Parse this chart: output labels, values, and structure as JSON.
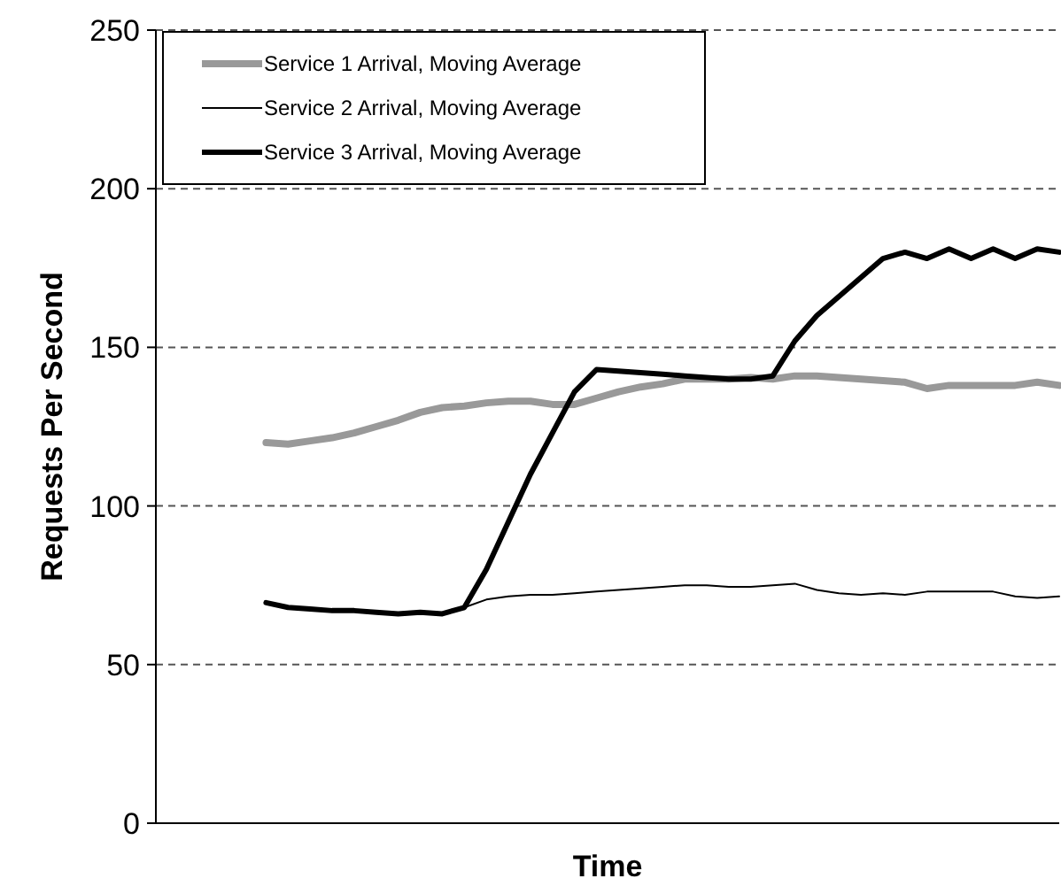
{
  "chart_data": {
    "type": "line",
    "xlabel": "Time",
    "ylabel": "Requests Per Second",
    "categories": [
      null,
      null,
      null,
      null,
      null,
      null,
      null,
      null,
      null,
      null,
      null,
      null,
      null,
      null,
      null,
      null,
      null,
      null,
      null,
      null,
      null,
      null,
      null,
      null,
      null,
      null,
      null,
      null,
      null,
      null,
      null,
      null,
      null,
      null,
      null,
      null,
      null,
      null,
      null,
      null,
      null,
      null
    ],
    "series": [
      {
        "name": "Service 1 Arrival, Moving Average",
        "color": "#999999",
        "values": [
          null,
          null,
          null,
          null,
          null,
          120,
          119.5,
          120.5,
          121.5,
          123,
          125,
          127,
          129.5,
          131,
          131.5,
          132.5,
          133,
          133,
          132,
          132,
          134,
          136,
          137.5,
          138.5,
          140,
          140,
          140,
          140.5,
          140,
          141,
          141,
          140.5,
          140,
          139.5,
          139,
          137,
          138,
          138,
          138,
          138,
          139,
          138
        ]
      },
      {
        "name": "Service 2 Arrival, Moving Average",
        "color": "#000000",
        "values": [
          null,
          null,
          null,
          null,
          null,
          69.5,
          68,
          67.5,
          67,
          67,
          66.5,
          66,
          66.5,
          66,
          68,
          70.5,
          71.5,
          72,
          72,
          72.5,
          73,
          73.5,
          74,
          74.5,
          75,
          75,
          74.5,
          74.5,
          75,
          75.5,
          73.5,
          72.5,
          72,
          72.5,
          72,
          73,
          73,
          73,
          73,
          71.5,
          71,
          71.5
        ]
      },
      {
        "name": "Service 3 Arrival, Moving Average",
        "color": "#000000",
        "values": [
          null,
          null,
          null,
          null,
          null,
          69.5,
          68,
          67.5,
          67,
          67,
          66.5,
          66,
          66.5,
          66,
          68,
          80,
          95,
          110,
          123,
          136,
          143,
          142.5,
          142,
          141.5,
          141,
          140.5,
          140,
          140,
          141,
          152,
          160,
          166,
          172,
          178,
          180,
          178,
          181,
          178,
          181,
          178,
          181,
          180
        ]
      }
    ],
    "ylim": [
      0,
      250
    ],
    "yticks": [
      0,
      50,
      100,
      150,
      200,
      250
    ],
    "grid": "y",
    "legend": "top left"
  }
}
